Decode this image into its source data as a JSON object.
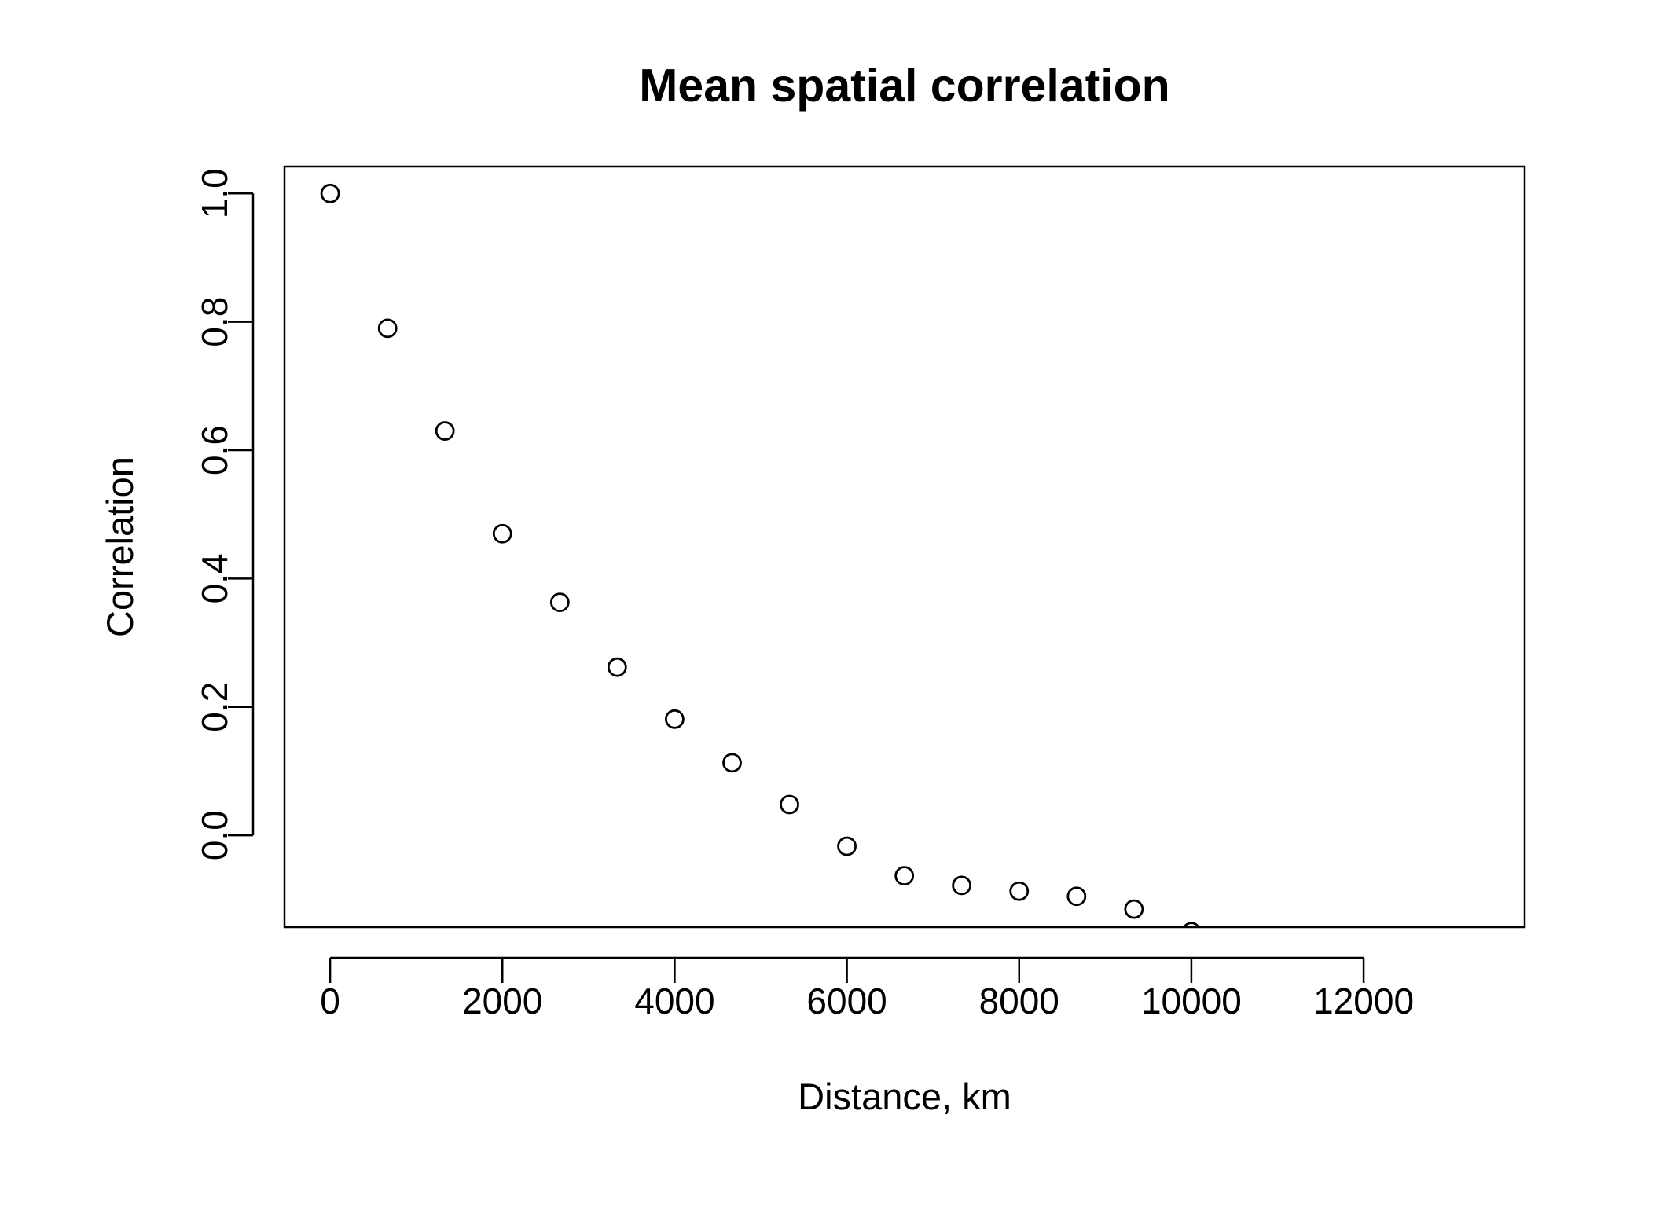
{
  "chart_data": {
    "type": "scatter",
    "title": "Mean spatial correlation",
    "xlabel": "Distance, km",
    "ylabel": "Correlation",
    "xlim": [
      -530,
      13870
    ],
    "ylim": [
      -0.143,
      1.042
    ],
    "xticks": [
      0,
      2000,
      4000,
      6000,
      8000,
      10000,
      12000
    ],
    "xtick_labels": [
      "0",
      "2000",
      "4000",
      "6000",
      "8000",
      "10000",
      "12000"
    ],
    "yticks": [
      0.0,
      0.2,
      0.4,
      0.6,
      0.8,
      1.0
    ],
    "ytick_labels": [
      "0.0",
      "0.2",
      "0.4",
      "0.6",
      "0.8",
      "1.0"
    ],
    "grid": false,
    "legend": "none",
    "marker": "open-circle",
    "color": "#000000",
    "series": [
      {
        "x": [
          0,
          667,
          1333,
          2000,
          2667,
          3333,
          4000,
          4667,
          5333,
          6000,
          6667,
          7333,
          8000,
          8667,
          9333,
          10000
        ],
        "y": [
          1.0,
          0.79,
          0.63,
          0.47,
          0.363,
          0.262,
          0.181,
          0.113,
          0.048,
          -0.017,
          -0.063,
          -0.078,
          -0.087,
          -0.095,
          -0.115,
          -0.15
        ]
      }
    ]
  }
}
